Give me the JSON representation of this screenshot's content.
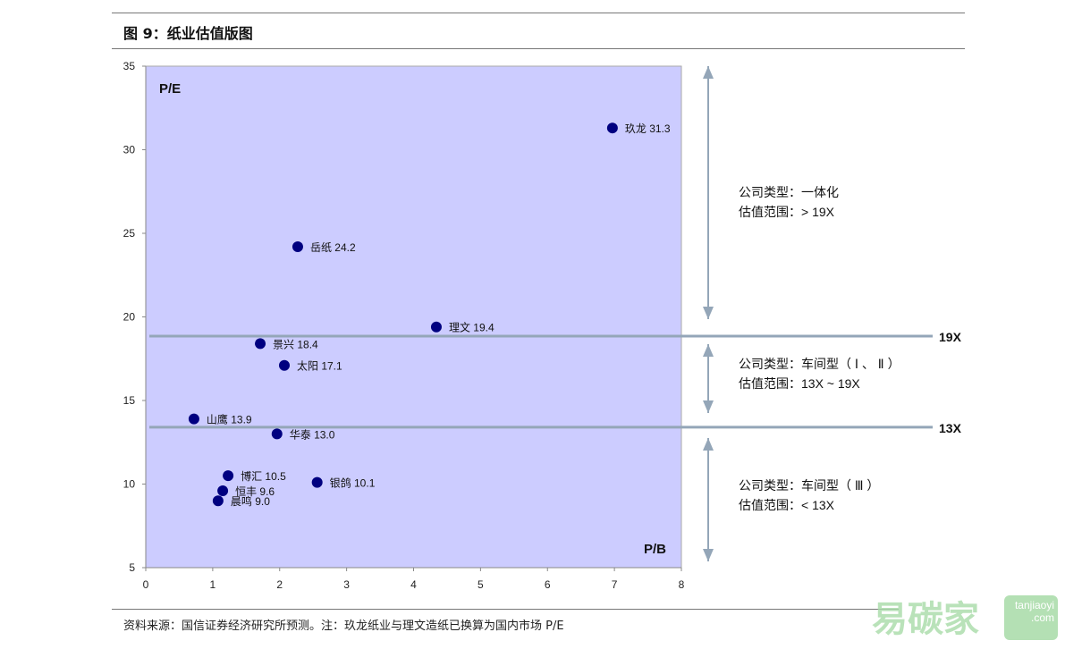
{
  "header": {
    "title": "图 9：纸业估值版图"
  },
  "footer": {
    "source": "资料来源：国信证券经济研究所预测。注：玖龙纸业与理文造纸已换算为国内市场 P/E"
  },
  "watermark": {
    "text": "易碳家",
    "site": "tanjiaoyi .com"
  },
  "chart_data": {
    "type": "scatter",
    "title": "纸业估值版图",
    "xlabel": "P/B",
    "ylabel": "P/E",
    "xlim": [
      0,
      8
    ],
    "ylim": [
      5,
      35
    ],
    "xticks": [
      "0",
      "1",
      "2",
      "3",
      "4",
      "5",
      "6",
      "7",
      "8"
    ],
    "yticks": [
      "5",
      "10",
      "15",
      "20",
      "25",
      "30",
      "35"
    ],
    "points": [
      {
        "name": "玖龙",
        "label": "31.3",
        "x": 6.97,
        "y": 31.3
      },
      {
        "name": "岳纸",
        "label": "24.2",
        "x": 2.27,
        "y": 24.2
      },
      {
        "name": "理文",
        "label": "19.4",
        "x": 4.34,
        "y": 19.4
      },
      {
        "name": "景兴",
        "label": "18.4",
        "x": 1.71,
        "y": 18.4
      },
      {
        "name": "太阳",
        "label": "17.1",
        "x": 2.07,
        "y": 17.1
      },
      {
        "name": "山鹰",
        "label": "13.9",
        "x": 0.72,
        "y": 13.9
      },
      {
        "name": "华泰",
        "label": "13.0",
        "x": 1.96,
        "y": 13.0
      },
      {
        "name": "博汇",
        "label": "10.5",
        "x": 1.23,
        "y": 10.5
      },
      {
        "name": "恒丰",
        "label": "9.6",
        "x": 1.15,
        "y": 9.6
      },
      {
        "name": "晨鸣",
        "label": "9.0",
        "x": 1.08,
        "y": 9.0
      },
      {
        "name": "银鸽",
        "label": "10.1",
        "x": 2.56,
        "y": 10.1
      }
    ],
    "thresholds": [
      {
        "label": "19X",
        "y": 18.85
      },
      {
        "label": "13X",
        "y": 13.4
      }
    ],
    "zones": [
      {
        "type_line": "公司类型：一体化",
        "range_line": "估值范围：> 19X"
      },
      {
        "type_line": "公司类型：车间型（ Ⅰ 、 Ⅱ ）",
        "range_line": "估值范围：13X ~ 19X"
      },
      {
        "type_line": "公司类型：车间型（ Ⅲ ）",
        "range_line": "估值范围：< 13X"
      }
    ],
    "colors": {
      "plot_bg": "#ccccff",
      "point": "#000080",
      "line": "#94a6b8"
    }
  }
}
